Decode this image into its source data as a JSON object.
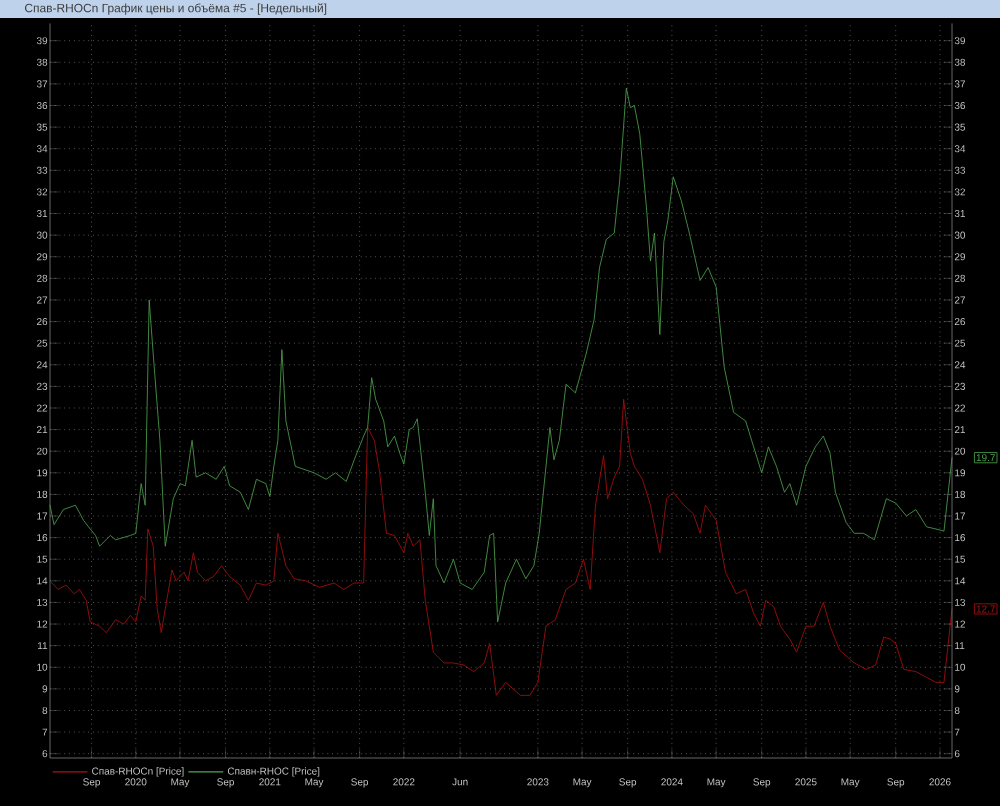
{
  "chart_data": {
    "type": "line",
    "title": "Спав-RHOCn График цены и объёма #5 - [Недельный]",
    "x": [
      2019.36,
      2019.42,
      2019.48,
      2019.54,
      2019.58,
      2019.63,
      2019.66,
      2019.73,
      2019.78,
      2019.85,
      2019.91,
      2019.96,
      2020.0,
      2020.04,
      2020.07,
      2020.09,
      2020.13,
      2020.16,
      2020.19,
      2020.22,
      2020.27,
      2020.3,
      2020.36,
      2020.39,
      2020.43,
      2020.46,
      2020.52,
      2020.58,
      2020.64,
      2020.7,
      2020.78,
      2020.84,
      2020.9,
      2020.97,
      2021.03,
      2021.06,
      2021.12,
      2021.18,
      2021.27,
      2021.37,
      2021.48,
      2021.55,
      2021.63,
      2021.7,
      2021.73,
      2021.78,
      2021.82,
      2021.87,
      2021.93,
      2022.0,
      2022.03,
      2022.07,
      2022.12,
      2022.16,
      2022.22,
      2022.3,
      2022.37,
      2022.45,
      2022.52,
      2022.6,
      2022.64,
      2022.69,
      2022.76,
      2022.87,
      2022.94,
      2023.0,
      2023.06,
      2023.13,
      2023.21,
      2023.28,
      2023.34,
      2023.39,
      2023.43,
      2023.49,
      2023.52,
      2023.57,
      2023.61,
      2023.64,
      2023.69,
      2023.72,
      2023.78,
      2023.84,
      2023.91,
      2023.96,
      2024.01,
      2024.09,
      2024.16,
      2024.21,
      2024.25,
      2024.33,
      2024.4,
      2024.48,
      2024.55,
      2024.61,
      2024.66,
      2024.7,
      2024.76,
      2024.81,
      2024.88,
      2024.93,
      2025.0,
      2025.06,
      2025.13,
      2025.18,
      2025.25,
      2025.36,
      2025.45,
      2025.52,
      2025.58,
      2025.63,
      2025.67,
      2025.73,
      2025.82,
      2025.97,
      2026.03,
      2026.09
    ],
    "series": [
      {
        "name": "Спав-RHOCn [Price]",
        "color": "#b01010",
        "values": [
          14.0,
          13.6,
          13.8,
          13.4,
          13.6,
          13.1,
          12.1,
          11.9,
          11.6,
          12.2,
          12.0,
          12.4,
          12.1,
          13.3,
          13.1,
          16.4,
          15.6,
          12.7,
          11.6,
          12.7,
          14.5,
          14.0,
          14.4,
          14.0,
          15.3,
          14.4,
          14.0,
          14.2,
          14.7,
          14.2,
          13.8,
          13.1,
          13.9,
          13.8,
          14.0,
          16.2,
          14.7,
          14.1,
          14.0,
          13.7,
          13.9,
          13.6,
          13.9,
          13.9,
          21.1,
          20.5,
          19.0,
          16.2,
          16.1,
          15.3,
          16.2,
          15.6,
          15.9,
          13.1,
          10.7,
          10.2,
          10.2,
          10.1,
          9.8,
          10.2,
          11.1,
          8.7,
          9.3,
          8.7,
          8.7,
          9.3,
          11.9,
          12.2,
          13.6,
          13.9,
          15.0,
          13.6,
          17.5,
          19.8,
          17.8,
          18.8,
          19.3,
          22.4,
          19.9,
          19.3,
          18.7,
          17.5,
          15.3,
          17.8,
          18.1,
          17.5,
          17.1,
          16.2,
          17.5,
          16.8,
          14.4,
          13.4,
          13.6,
          12.5,
          11.9,
          13.1,
          12.8,
          11.9,
          11.3,
          10.7,
          11.9,
          11.9,
          13.0,
          11.9,
          10.8,
          10.2,
          9.9,
          10.1,
          11.4,
          11.3,
          11.1,
          9.9,
          9.8,
          9.3,
          9.3,
          12.7
        ]
      },
      {
        "name": "Спавн-RHOC [Price]",
        "color": "#4fa84f",
        "x": [
          2019.36,
          2019.39,
          2019.46,
          2019.55,
          2019.61,
          2019.66,
          2019.7,
          2019.73,
          2019.81,
          2019.85,
          2019.96,
          2020.0,
          2020.04,
          2020.07,
          2020.1,
          2020.13,
          2020.18,
          2020.22,
          2020.28,
          2020.33,
          2020.37,
          2020.42,
          2020.45,
          2020.52,
          2020.6,
          2020.66,
          2020.7,
          2020.78,
          2020.84,
          2020.9,
          2020.97,
          2021.0,
          2021.03,
          2021.06,
          2021.09,
          2021.12,
          2021.19,
          2021.33,
          2021.42,
          2021.49,
          2021.57,
          2021.63,
          2021.7,
          2021.73,
          2021.76,
          2021.79,
          2021.85,
          2021.88,
          2021.93,
          2021.97,
          2022.0,
          2022.04,
          2022.07,
          2022.1,
          2022.16,
          2022.19,
          2022.22,
          2022.24,
          2022.3,
          2022.37,
          2022.42,
          2022.51,
          2022.6,
          2022.64,
          2022.67,
          2022.7,
          2022.76,
          2022.84,
          2022.91,
          2022.97,
          2023.01,
          2023.09,
          2023.12,
          2023.16,
          2023.21,
          2023.28,
          2023.36,
          2023.42,
          2023.46,
          2023.51,
          2023.57,
          2023.61,
          2023.66,
          2023.69,
          2023.72,
          2023.76,
          2023.81,
          2023.84,
          2023.87,
          2023.91,
          2023.94,
          2023.97,
          2024.01,
          2024.07,
          2024.13,
          2024.21,
          2024.27,
          2024.33,
          2024.39,
          2024.46,
          2024.55,
          2024.61,
          2024.67,
          2024.72,
          2024.78,
          2024.84,
          2024.88,
          2024.93,
          2025.0,
          2025.07,
          2025.13,
          2025.18,
          2025.22,
          2025.3,
          2025.36,
          2025.43,
          2025.51,
          2025.6,
          2025.67,
          2025.75,
          2025.82,
          2025.9,
          2025.97,
          2026.03,
          2026.09
        ],
        "values": [
          17.5,
          16.6,
          17.3,
          17.5,
          16.8,
          16.4,
          16.1,
          15.6,
          16.1,
          15.9,
          16.1,
          16.2,
          18.5,
          17.5,
          27.0,
          24.5,
          20.5,
          15.6,
          17.8,
          18.5,
          18.4,
          20.5,
          18.8,
          19.0,
          18.7,
          19.3,
          18.4,
          18.1,
          17.3,
          18.7,
          18.5,
          17.9,
          19.3,
          20.5,
          24.7,
          21.4,
          19.3,
          19.0,
          18.7,
          19.0,
          18.6,
          19.6,
          20.7,
          21.1,
          23.4,
          22.4,
          21.4,
          20.2,
          20.7,
          19.9,
          19.4,
          21.0,
          21.1,
          21.5,
          18.1,
          16.1,
          17.8,
          14.7,
          13.9,
          15.0,
          13.9,
          13.6,
          14.4,
          16.1,
          16.2,
          12.1,
          13.9,
          15.0,
          14.1,
          14.7,
          16.2,
          21.1,
          19.6,
          20.5,
          23.1,
          22.7,
          24.5,
          26.1,
          28.5,
          29.8,
          30.1,
          32.5,
          36.8,
          35.9,
          36.0,
          34.7,
          31.3,
          28.8,
          30.1,
          25.4,
          29.7,
          30.7,
          32.7,
          31.6,
          30.1,
          27.9,
          28.5,
          27.6,
          23.9,
          21.8,
          21.4,
          20.2,
          19.0,
          20.2,
          19.3,
          18.1,
          18.5,
          17.5,
          19.3,
          20.2,
          20.7,
          19.9,
          18.1,
          16.7,
          16.2,
          16.2,
          15.9,
          17.8,
          17.6,
          17.0,
          17.3,
          16.5,
          16.4,
          16.3,
          19.7
        ]
      }
    ],
    "annotations": [
      {
        "text": "12.7",
        "x": 2026.09,
        "y": 12.7
      },
      {
        "text": "19.7",
        "x": 2026.09,
        "y": 19.7
      }
    ],
    "xlim": [
      2019.36,
      2026.09
    ],
    "xticks": [
      {
        "value": 2019.67,
        "label": "Sep"
      },
      2020,
      {
        "value": 2020.33,
        "label": "May"
      },
      {
        "value": 2020.67,
        "label": "Sep"
      },
      2021,
      {
        "value": 2021.33,
        "label": "May"
      },
      {
        "value": 2021.67,
        "label": "Sep"
      },
      2022,
      {
        "value": 2022.42,
        "label": "Jun"
      },
      2023,
      {
        "value": 2023.33,
        "label": "May"
      },
      {
        "value": 2023.67,
        "label": "Sep"
      },
      2024,
      {
        "value": 2024.33,
        "label": "May"
      },
      {
        "value": 2024.67,
        "label": "Sep"
      },
      2025,
      {
        "value": 2025.33,
        "label": "May"
      },
      {
        "value": 2025.67,
        "label": "Sep"
      },
      2026
    ],
    "ylim": [
      5.8,
      39.8
    ],
    "yticks": [
      6,
      7,
      8,
      9,
      10,
      11,
      12,
      13,
      14,
      15,
      16,
      17,
      18,
      19,
      20,
      21,
      22,
      23,
      24,
      25,
      26,
      27,
      28,
      29,
      30,
      31,
      32,
      33,
      34,
      35,
      36,
      37,
      38,
      39
    ],
    "y2lim": [
      5.8,
      39.8
    ],
    "y2ticks": [
      6,
      7,
      8,
      9,
      10,
      11,
      12,
      13,
      14,
      15,
      16,
      17,
      18,
      19,
      20,
      21,
      22,
      23,
      24,
      25,
      26,
      27,
      28,
      29,
      30,
      31,
      32,
      33,
      34,
      35,
      36,
      37,
      38,
      39
    ],
    "grid": true,
    "legend": "bottom",
    "line_style": "solid"
  }
}
